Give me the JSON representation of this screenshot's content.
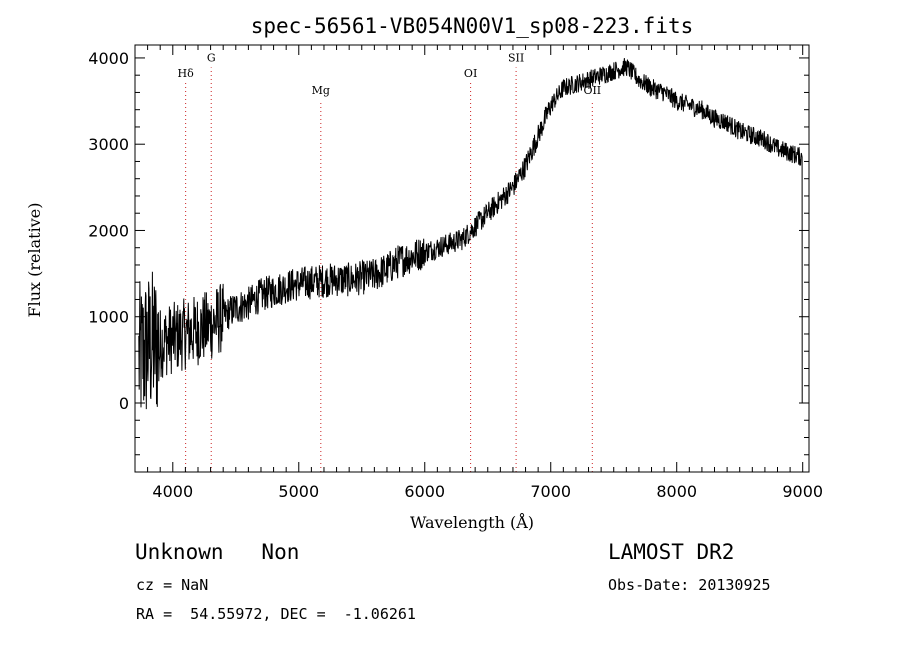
{
  "chart_data": {
    "type": "line",
    "title": "spec-56561-VB054N00V1_sp08-223.fits",
    "xlabel": "Wavelength (Å)",
    "ylabel": "Flux (relative)",
    "xlim": [
      3700,
      9050
    ],
    "ylim": [
      -800,
      4150
    ],
    "xticks": [
      4000,
      5000,
      6000,
      7000,
      8000,
      9000
    ],
    "yticks": [
      0,
      1000,
      2000,
      3000,
      4000
    ],
    "x_minor_step": 100,
    "y_minor_step": 200,
    "line_color": "#000000",
    "marker_color": "#cc2222",
    "continuum": [
      [
        3730,
        500
      ],
      [
        3800,
        650
      ],
      [
        3900,
        700
      ],
      [
        4000,
        750
      ],
      [
        4100,
        800
      ],
      [
        4200,
        850
      ],
      [
        4300,
        900
      ],
      [
        4400,
        1000
      ],
      [
        4500,
        1100
      ],
      [
        4600,
        1150
      ],
      [
        4700,
        1250
      ],
      [
        4800,
        1300
      ],
      [
        4900,
        1350
      ],
      [
        5000,
        1380
      ],
      [
        5100,
        1400
      ],
      [
        5200,
        1420
      ],
      [
        5300,
        1430
      ],
      [
        5400,
        1430
      ],
      [
        5500,
        1450
      ],
      [
        5600,
        1480
      ],
      [
        5700,
        1550
      ],
      [
        5800,
        1650
      ],
      [
        5900,
        1700
      ],
      [
        6000,
        1750
      ],
      [
        6100,
        1800
      ],
      [
        6200,
        1850
      ],
      [
        6300,
        1900
      ],
      [
        6400,
        2050
      ],
      [
        6500,
        2200
      ],
      [
        6600,
        2350
      ],
      [
        6700,
        2500
      ],
      [
        6800,
        2750
      ],
      [
        6900,
        3100
      ],
      [
        7000,
        3450
      ],
      [
        7100,
        3650
      ],
      [
        7200,
        3700
      ],
      [
        7300,
        3750
      ],
      [
        7400,
        3800
      ],
      [
        7500,
        3850
      ],
      [
        7600,
        3900
      ],
      [
        7700,
        3750
      ],
      [
        7800,
        3650
      ],
      [
        7900,
        3600
      ],
      [
        8000,
        3500
      ],
      [
        8100,
        3450
      ],
      [
        8200,
        3400
      ],
      [
        8300,
        3300
      ],
      [
        8400,
        3250
      ],
      [
        8500,
        3150
      ],
      [
        8600,
        3100
      ],
      [
        8700,
        3050
      ],
      [
        8800,
        2950
      ],
      [
        8900,
        2900
      ],
      [
        8990,
        2850
      ]
    ],
    "lines": [
      {
        "label": "Hδ",
        "x": 4102,
        "label_y": 3780
      },
      {
        "label": "G",
        "x": 4305,
        "label_y": 3960
      },
      {
        "label": "Mg",
        "x": 5175,
        "label_y": 3580
      },
      {
        "label": "OI",
        "x": 6364,
        "label_y": 3780
      },
      {
        "label": "SII",
        "x": 6725,
        "label_y": 3960
      },
      {
        "label": "OII",
        "x": 7330,
        "label_y": 3580
      }
    ]
  },
  "info": {
    "class_line": "Unknown   Non",
    "survey": "LAMOST DR2",
    "cz": "cz = NaN",
    "obs_date": "Obs-Date: 20130925",
    "coords": "RA =  54.55972, DEC =  -1.06261"
  }
}
